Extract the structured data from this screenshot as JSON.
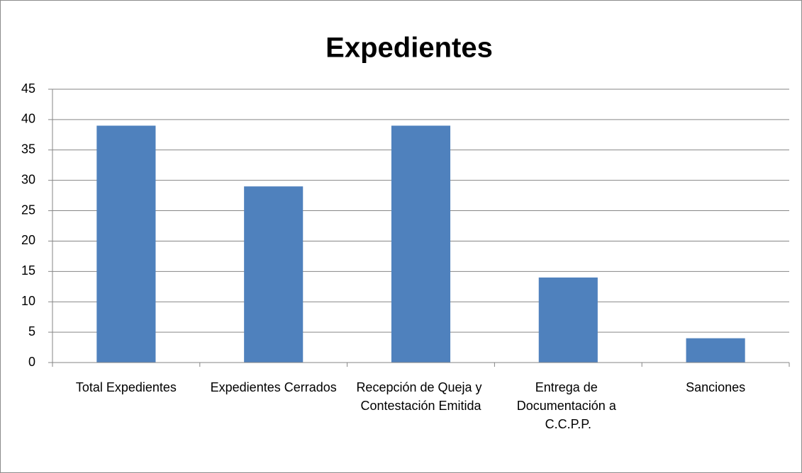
{
  "chart_data": {
    "type": "bar",
    "title": "Expedientes",
    "categories": [
      "Total Expedientes",
      "Expedientes Cerrados",
      "Recepción de Queja y Contestación Emitida",
      "Entrega de Documentación a C.C.P.P.",
      "Sanciones"
    ],
    "values": [
      39,
      29,
      39,
      14,
      4
    ],
    "color": "#4f81bd",
    "ylim": [
      0,
      45
    ],
    "yticks": [
      0,
      5,
      10,
      15,
      20,
      25,
      30,
      35,
      40,
      45
    ],
    "grid": true
  }
}
